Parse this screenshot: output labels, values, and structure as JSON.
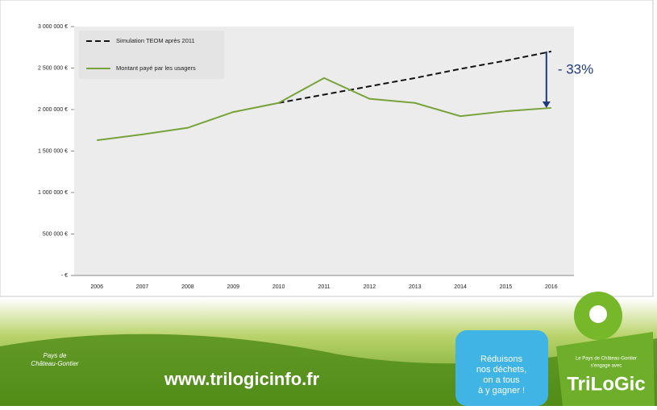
{
  "chart_data": {
    "type": "line",
    "categories": [
      "2006",
      "2007",
      "2008",
      "2009",
      "2010",
      "2011",
      "2012",
      "2013",
      "2014",
      "2015",
      "2016"
    ],
    "series": [
      {
        "name": "Simulation TEOM après 2011",
        "color": "#111111",
        "dash": true,
        "values": [
          null,
          null,
          null,
          null,
          2080000,
          2180000,
          2280000,
          2380000,
          2490000,
          2590000,
          2700000
        ]
      },
      {
        "name": "Montant payé par les usagers",
        "color": "#77a33a",
        "dash": false,
        "values": [
          1630000,
          1700000,
          1780000,
          1970000,
          2080000,
          2380000,
          2130000,
          2080000,
          1920000,
          1980000,
          2020000
        ]
      }
    ],
    "ylim": [
      0,
      3000000
    ],
    "yticks": [
      {
        "value": 0,
        "label": "- €"
      },
      {
        "value": 500000,
        "label": "500 000 €"
      },
      {
        "value": 1000000,
        "label": "1 000 000 €"
      },
      {
        "value": 1500000,
        "label": "1 500 000 €"
      },
      {
        "value": 2000000,
        "label": "2 000 000 €"
      },
      {
        "value": 2500000,
        "label": "2 500 000 €"
      },
      {
        "value": 3000000,
        "label": "3 000 000 €"
      }
    ],
    "grid": false,
    "legend": "upper left",
    "annotation": "- 33%",
    "annotation_color": "#1f3a7a"
  },
  "footer": {
    "url": "www.trilogicinfo.fr",
    "slogan": [
      "Réduisons",
      "nos déchets,",
      "on a tous",
      "à y gagner !"
    ],
    "brand": "TriLoGic",
    "region": [
      "Pays de",
      "Château-Gontier"
    ],
    "tagline": [
      "Le Pays de Château-Gontier",
      "s'engage avec"
    ]
  }
}
